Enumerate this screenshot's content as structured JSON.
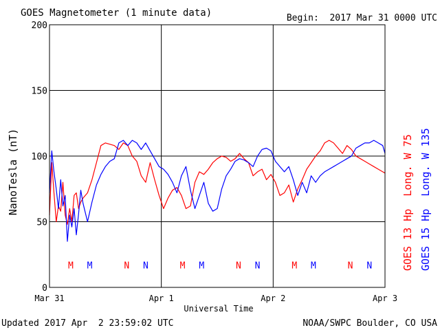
{
  "chart_data": {
    "type": "line",
    "title": "GOES Magnetometer (1 minute data)",
    "begin_label": "Begin:  2017 Mar 31 0000 UTC",
    "ylabel": "NanoTesla (nT)",
    "xlabel": "Universal Time",
    "ylim": [
      0,
      200
    ],
    "yticks": [
      0,
      50,
      100,
      150,
      200
    ],
    "xlim_days": [
      0,
      3
    ],
    "xticks": [
      {
        "day": 0,
        "label": "Mar 31"
      },
      {
        "day": 1,
        "label": "Apr 1"
      },
      {
        "day": 2,
        "label": "Apr 2"
      },
      {
        "day": 3,
        "label": "Apr 3"
      }
    ],
    "grid": true,
    "series": [
      {
        "name": "GOES 13 Hp  Long. W 75",
        "color": "#ff0000",
        "x": [
          0.0,
          0.02,
          0.04,
          0.06,
          0.08,
          0.1,
          0.12,
          0.14,
          0.16,
          0.18,
          0.2,
          0.22,
          0.24,
          0.26,
          0.28,
          0.3,
          0.34,
          0.38,
          0.42,
          0.46,
          0.5,
          0.54,
          0.58,
          0.62,
          0.66,
          0.7,
          0.74,
          0.78,
          0.82,
          0.86,
          0.9,
          0.94,
          0.98,
          1.02,
          1.06,
          1.1,
          1.14,
          1.18,
          1.22,
          1.26,
          1.3,
          1.34,
          1.38,
          1.42,
          1.46,
          1.5,
          1.54,
          1.58,
          1.62,
          1.66,
          1.7,
          1.74,
          1.78,
          1.82,
          1.86,
          1.9,
          1.94,
          1.98,
          2.02,
          2.06,
          2.1,
          2.14,
          2.18,
          2.22,
          2.26,
          2.3,
          2.34,
          2.38,
          2.42,
          2.46,
          2.5,
          2.54,
          2.58,
          2.62,
          2.66,
          2.7,
          2.74,
          2.78,
          2.82,
          2.86,
          2.9,
          2.94,
          2.98,
          3.0
        ],
        "y": [
          55,
          95,
          72,
          50,
          62,
          58,
          80,
          55,
          48,
          60,
          50,
          70,
          72,
          60,
          65,
          68,
          72,
          82,
          95,
          108,
          110,
          109,
          108,
          105,
          110,
          108,
          100,
          96,
          85,
          80,
          95,
          82,
          70,
          60,
          68,
          74,
          76,
          70,
          60,
          62,
          80,
          88,
          86,
          90,
          95,
          98,
          100,
          99,
          96,
          98,
          102,
          98,
          95,
          85,
          88,
          90,
          82,
          86,
          80,
          70,
          72,
          78,
          65,
          75,
          82,
          90,
          95,
          100,
          104,
          110,
          112,
          110,
          106,
          102,
          108,
          105,
          100,
          98,
          96,
          94,
          92,
          90,
          88,
          87
        ]
      },
      {
        "name": "GOES 15 Hp  Long. W 135",
        "color": "#0000ff",
        "x": [
          0.0,
          0.02,
          0.04,
          0.06,
          0.08,
          0.1,
          0.12,
          0.14,
          0.16,
          0.18,
          0.2,
          0.22,
          0.24,
          0.26,
          0.28,
          0.3,
          0.34,
          0.38,
          0.42,
          0.46,
          0.5,
          0.54,
          0.58,
          0.62,
          0.66,
          0.7,
          0.74,
          0.78,
          0.82,
          0.86,
          0.9,
          0.94,
          0.98,
          1.02,
          1.06,
          1.1,
          1.14,
          1.18,
          1.22,
          1.26,
          1.3,
          1.34,
          1.38,
          1.42,
          1.46,
          1.5,
          1.54,
          1.58,
          1.62,
          1.66,
          1.7,
          1.74,
          1.78,
          1.82,
          1.86,
          1.9,
          1.94,
          1.98,
          2.02,
          2.06,
          2.1,
          2.14,
          2.18,
          2.22,
          2.26,
          2.3,
          2.34,
          2.38,
          2.42,
          2.46,
          2.5,
          2.54,
          2.58,
          2.62,
          2.66,
          2.7,
          2.74,
          2.78,
          2.82,
          2.86,
          2.9,
          2.94,
          2.98,
          3.0
        ],
        "y": [
          72,
          104,
          88,
          75,
          60,
          82,
          62,
          70,
          35,
          55,
          46,
          60,
          40,
          56,
          74,
          64,
          50,
          65,
          78,
          86,
          92,
          96,
          98,
          110,
          112,
          108,
          112,
          110,
          105,
          110,
          104,
          98,
          92,
          90,
          86,
          80,
          72,
          85,
          92,
          74,
          60,
          70,
          80,
          64,
          58,
          60,
          75,
          85,
          90,
          96,
          98,
          97,
          95,
          92,
          100,
          105,
          106,
          104,
          96,
          92,
          88,
          92,
          82,
          70,
          80,
          72,
          85,
          80,
          85,
          88,
          90,
          92,
          94,
          96,
          98,
          100,
          106,
          108,
          110,
          110,
          112,
          110,
          108,
          102
        ]
      }
    ],
    "markers": [
      {
        "label": "M",
        "day": 0.19,
        "color": "#ff0000"
      },
      {
        "label": "M",
        "day": 0.36,
        "color": "#0000ff"
      },
      {
        "label": "N",
        "day": 0.69,
        "color": "#ff0000"
      },
      {
        "label": "N",
        "day": 0.86,
        "color": "#0000ff"
      },
      {
        "label": "M",
        "day": 1.19,
        "color": "#ff0000"
      },
      {
        "label": "M",
        "day": 1.36,
        "color": "#0000ff"
      },
      {
        "label": "N",
        "day": 1.69,
        "color": "#ff0000"
      },
      {
        "label": "N",
        "day": 1.86,
        "color": "#0000ff"
      },
      {
        "label": "M",
        "day": 2.19,
        "color": "#ff0000"
      },
      {
        "label": "M",
        "day": 2.36,
        "color": "#0000ff"
      },
      {
        "label": "N",
        "day": 2.69,
        "color": "#ff0000"
      },
      {
        "label": "N",
        "day": 2.86,
        "color": "#0000ff"
      }
    ],
    "marker_level_nT": 17
  },
  "footer": {
    "updated": "Updated 2017 Apr  2 23:59:02 UTC",
    "source": "NOAA/SWPC Boulder, CO USA"
  }
}
